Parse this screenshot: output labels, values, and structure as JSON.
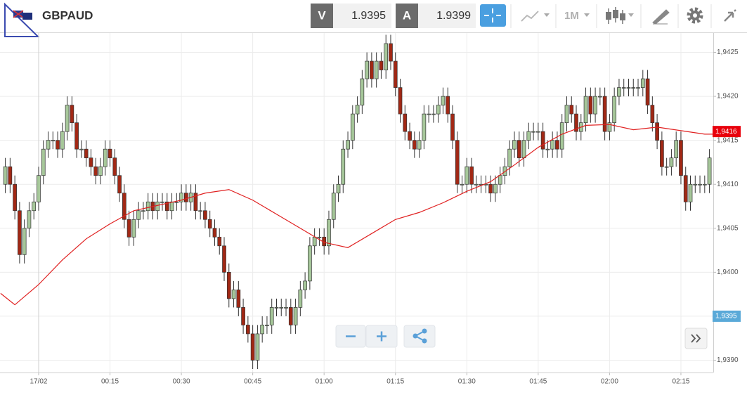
{
  "toolbar": {
    "symbol": "GBPAUD",
    "bid_label": "V",
    "bid": "1.9395",
    "ask_label": "A",
    "ask": "1.9399",
    "timeframe": "1M"
  },
  "chart_data": {
    "type": "candlestick",
    "up_color": "#a6c79a",
    "down_color": "#a12815",
    "grid": true,
    "xlim": [
      -8.12,
      141.8
    ],
    "xticks": [
      {
        "value": 0,
        "label": "17/02"
      },
      {
        "value": 15,
        "label": "00:15"
      },
      {
        "value": 30,
        "label": "00:30"
      },
      {
        "value": 45,
        "label": "00:45"
      },
      {
        "value": 60,
        "label": "01:00"
      },
      {
        "value": 75,
        "label": "01:15"
      },
      {
        "value": 90,
        "label": "01:30"
      },
      {
        "value": 105,
        "label": "01:45"
      },
      {
        "value": 120,
        "label": "02:00"
      },
      {
        "value": 135,
        "label": "02:15"
      }
    ],
    "ylim": [
      1.93886,
      1.94272
    ],
    "yticks": [
      {
        "value": 1.939,
        "label": "1,9390"
      },
      {
        "value": 1.9395,
        "label": "1,9395"
      },
      {
        "value": 1.94,
        "label": "1,9400"
      },
      {
        "value": 1.9405,
        "label": "1,9405"
      },
      {
        "value": 1.941,
        "label": "1,9410"
      },
      {
        "value": 1.9415,
        "label": "1,9415"
      },
      {
        "value": 1.942,
        "label": "1,9420"
      },
      {
        "value": 1.9425,
        "label": "1,9425"
      }
    ],
    "x": [
      -7,
      -6,
      -5,
      -4,
      -3,
      -2,
      -1,
      0,
      1,
      2,
      3,
      4,
      5,
      6,
      7,
      8,
      9,
      10,
      11,
      12,
      13,
      14,
      15,
      16,
      17,
      18,
      19,
      20,
      21,
      22,
      23,
      24,
      25,
      26,
      27,
      28,
      29,
      30,
      31,
      32,
      33,
      34,
      35,
      36,
      37,
      38,
      39,
      40,
      41,
      42,
      43,
      44,
      45,
      46,
      47,
      48,
      49,
      50,
      51,
      52,
      53,
      54,
      55,
      56,
      57,
      58,
      59,
      60,
      61,
      62,
      63,
      64,
      65,
      66,
      67,
      68,
      69,
      70,
      71,
      72,
      73,
      74,
      75,
      76,
      77,
      78,
      79,
      80,
      81,
      82,
      83,
      84,
      85,
      86,
      87,
      88,
      89,
      90,
      91,
      92,
      93,
      94,
      95,
      96,
      97,
      98,
      99,
      100,
      101,
      102,
      103,
      104,
      105,
      106,
      107,
      108,
      109,
      110,
      111,
      112,
      113,
      114,
      115,
      116,
      117,
      118,
      119,
      120,
      121,
      122,
      123,
      124,
      125,
      126,
      127,
      128,
      129,
      130,
      131,
      132,
      133,
      134,
      135,
      136,
      137,
      138,
      139,
      140,
      141
    ],
    "open": [
      1.941,
      1.9412,
      1.941,
      1.9407,
      1.9402,
      1.9405,
      1.9407,
      1.9408,
      1.9411,
      1.9414,
      1.9415,
      1.9415,
      1.9414,
      1.9416,
      1.9419,
      1.9417,
      1.9414,
      1.9414,
      1.9413,
      1.9412,
      1.9411,
      1.9412,
      1.9414,
      1.9413,
      1.9411,
      1.9409,
      1.9406,
      1.9404,
      1.9406,
      1.9407,
      1.9407,
      1.9408,
      1.9407,
      1.9408,
      1.9408,
      1.9407,
      1.9408,
      1.9408,
      1.9409,
      1.9408,
      1.9409,
      1.9407,
      1.9407,
      1.9406,
      1.9405,
      1.9404,
      1.9403,
      1.94,
      1.9397,
      1.9398,
      1.9396,
      1.9394,
      1.9393,
      1.939,
      1.9393,
      1.9394,
      1.9394,
      1.9396,
      1.9396,
      1.9396,
      1.9396,
      1.9394,
      1.9396,
      1.9398,
      1.9399,
      1.9403,
      1.9404,
      1.9404,
      1.9403,
      1.9406,
      1.9409,
      1.941,
      1.9414,
      1.9415,
      1.9418,
      1.9419,
      1.9422,
      1.9424,
      1.9422,
      1.9424,
      1.9423,
      1.9426,
      1.9424,
      1.9421,
      1.9418,
      1.9416,
      1.9415,
      1.9414,
      1.9415,
      1.9418,
      1.9418,
      1.9418,
      1.9419,
      1.942,
      1.9418,
      1.9415,
      1.941,
      1.941,
      1.9412,
      1.941,
      1.941,
      1.941,
      1.941,
      1.9409,
      1.941,
      1.9411,
      1.9412,
      1.9414,
      1.9415,
      1.9413,
      1.9415,
      1.9416,
      1.9416,
      1.9416,
      1.9414,
      1.9414,
      1.9415,
      1.9414,
      1.9417,
      1.9419,
      1.9418,
      1.9416,
      1.9417,
      1.942,
      1.9418,
      1.942,
      1.942,
      1.9416,
      1.9417,
      1.942,
      1.9421,
      1.9421,
      1.9421,
      1.9421,
      1.9421,
      1.9422,
      1.9419,
      1.9417,
      1.9415,
      1.9412,
      1.9412,
      1.9413,
      1.9415,
      1.9411,
      1.9408,
      1.941,
      1.941,
      1.941,
      1.941
    ],
    "high": [
      1.9413,
      1.9413,
      1.9411,
      1.9408,
      1.9406,
      1.9408,
      1.9409,
      1.9412,
      1.9415,
      1.9416,
      1.9416,
      1.9416,
      1.9417,
      1.942,
      1.942,
      1.9418,
      1.9415,
      1.9415,
      1.9414,
      1.9413,
      1.9413,
      1.9415,
      1.9415,
      1.9414,
      1.9412,
      1.941,
      1.9407,
      1.9407,
      1.9408,
      1.9408,
      1.9409,
      1.9409,
      1.9409,
      1.9409,
      1.9409,
      1.9409,
      1.9409,
      1.941,
      1.941,
      1.941,
      1.941,
      1.9408,
      1.9408,
      1.9407,
      1.9406,
      1.9405,
      1.9404,
      1.9401,
      1.9399,
      1.9399,
      1.9397,
      1.9395,
      1.9394,
      1.9394,
      1.9395,
      1.9395,
      1.9397,
      1.9397,
      1.9397,
      1.9397,
      1.9397,
      1.9397,
      1.9399,
      1.94,
      1.9404,
      1.9405,
      1.9405,
      1.9405,
      1.9407,
      1.941,
      1.9411,
      1.9415,
      1.9416,
      1.9419,
      1.942,
      1.9423,
      1.9425,
      1.9425,
      1.9425,
      1.9425,
      1.9427,
      1.9427,
      1.9425,
      1.9422,
      1.9419,
      1.9417,
      1.9416,
      1.9416,
      1.9419,
      1.9419,
      1.9419,
      1.942,
      1.9421,
      1.9421,
      1.9419,
      1.9416,
      1.9411,
      1.9413,
      1.9413,
      1.9411,
      1.9411,
      1.9411,
      1.9411,
      1.9411,
      1.9412,
      1.9413,
      1.9415,
      1.9416,
      1.9416,
      1.9416,
      1.9417,
      1.9417,
      1.9417,
      1.9417,
      1.9415,
      1.9416,
      1.9416,
      1.9418,
      1.942,
      1.942,
      1.9419,
      1.9418,
      1.9421,
      1.9421,
      1.9421,
      1.9421,
      1.9421,
      1.9418,
      1.9421,
      1.9422,
      1.9422,
      1.9422,
      1.9422,
      1.9422,
      1.9423,
      1.9423,
      1.942,
      1.9418,
      1.9416,
      1.9413,
      1.9414,
      1.9416,
      1.9416,
      1.9412,
      1.9411,
      1.9411,
      1.9411,
      1.9411,
      1.9414
    ],
    "low": [
      1.9409,
      1.9409,
      1.9406,
      1.9401,
      1.9401,
      1.9404,
      1.9406,
      1.9407,
      1.941,
      1.9413,
      1.9414,
      1.9413,
      1.9413,
      1.9415,
      1.9416,
      1.9413,
      1.9413,
      1.9412,
      1.9411,
      1.941,
      1.941,
      1.9411,
      1.9412,
      1.941,
      1.9408,
      1.9405,
      1.9403,
      1.9403,
      1.9405,
      1.9406,
      1.9406,
      1.9406,
      1.9406,
      1.9407,
      1.9406,
      1.9406,
      1.9407,
      1.9407,
      1.9407,
      1.9407,
      1.9406,
      1.9406,
      1.9405,
      1.9404,
      1.9403,
      1.9402,
      1.9399,
      1.9396,
      1.9396,
      1.9395,
      1.9393,
      1.9392,
      1.9389,
      1.9389,
      1.9392,
      1.9393,
      1.9393,
      1.9395,
      1.9395,
      1.9395,
      1.9393,
      1.9393,
      1.9395,
      1.9397,
      1.9398,
      1.9402,
      1.9403,
      1.9402,
      1.9402,
      1.9405,
      1.9408,
      1.9409,
      1.9413,
      1.9414,
      1.9417,
      1.9418,
      1.9421,
      1.9421,
      1.9421,
      1.9422,
      1.9422,
      1.9423,
      1.942,
      1.9417,
      1.9415,
      1.9414,
      1.9413,
      1.9413,
      1.9414,
      1.9417,
      1.9417,
      1.9417,
      1.9418,
      1.9417,
      1.9414,
      1.9409,
      1.9409,
      1.9409,
      1.9409,
      1.9409,
      1.9409,
      1.9409,
      1.9408,
      1.9408,
      1.9409,
      1.941,
      1.9411,
      1.9413,
      1.9412,
      1.9412,
      1.9414,
      1.9415,
      1.9415,
      1.9413,
      1.9413,
      1.9413,
      1.9413,
      1.9413,
      1.9416,
      1.9417,
      1.9415,
      1.9415,
      1.9416,
      1.9417,
      1.9417,
      1.9419,
      1.9415,
      1.9415,
      1.9416,
      1.9419,
      1.942,
      1.942,
      1.942,
      1.942,
      1.942,
      1.9418,
      1.9416,
      1.9414,
      1.9411,
      1.9411,
      1.9411,
      1.9412,
      1.941,
      1.9407,
      1.9407,
      1.9409,
      1.9409,
      1.9409,
      1.9409
    ],
    "close": [
      1.9412,
      1.941,
      1.9407,
      1.9402,
      1.9405,
      1.9407,
      1.9408,
      1.9411,
      1.9414,
      1.9415,
      1.9415,
      1.9414,
      1.9416,
      1.9419,
      1.9417,
      1.9414,
      1.9414,
      1.9413,
      1.9412,
      1.9411,
      1.9412,
      1.9414,
      1.9413,
      1.9411,
      1.9409,
      1.9406,
      1.9404,
      1.9406,
      1.9407,
      1.9407,
      1.9408,
      1.9407,
      1.9408,
      1.9408,
      1.9407,
      1.9408,
      1.9408,
      1.9409,
      1.9408,
      1.9409,
      1.9407,
      1.9407,
      1.9406,
      1.9405,
      1.9404,
      1.9403,
      1.94,
      1.9397,
      1.9398,
      1.9396,
      1.9394,
      1.9393,
      1.939,
      1.9393,
      1.9394,
      1.9394,
      1.9396,
      1.9396,
      1.9396,
      1.9396,
      1.9394,
      1.9396,
      1.9398,
      1.9399,
      1.9403,
      1.9404,
      1.9404,
      1.9403,
      1.9406,
      1.9409,
      1.941,
      1.9414,
      1.9415,
      1.9418,
      1.9419,
      1.9422,
      1.9424,
      1.9422,
      1.9424,
      1.9423,
      1.9426,
      1.9424,
      1.9421,
      1.9418,
      1.9416,
      1.9415,
      1.9414,
      1.9415,
      1.9418,
      1.9418,
      1.9418,
      1.9419,
      1.942,
      1.9418,
      1.9415,
      1.941,
      1.941,
      1.9412,
      1.941,
      1.941,
      1.941,
      1.941,
      1.9409,
      1.941,
      1.9411,
      1.9412,
      1.9414,
      1.9415,
      1.9413,
      1.9415,
      1.9416,
      1.9416,
      1.9416,
      1.9414,
      1.9414,
      1.9415,
      1.9414,
      1.9417,
      1.9419,
      1.9418,
      1.9416,
      1.9417,
      1.942,
      1.9418,
      1.942,
      1.942,
      1.9416,
      1.9417,
      1.942,
      1.9421,
      1.9421,
      1.9421,
      1.9421,
      1.9421,
      1.9422,
      1.9419,
      1.9417,
      1.9415,
      1.9412,
      1.9412,
      1.9413,
      1.9415,
      1.9411,
      1.9408,
      1.941,
      1.941,
      1.941,
      1.941,
      1.9413
    ],
    "moving_average": {
      "type": "line",
      "color": "#e02020",
      "x": [
        -8,
        -5,
        0,
        5,
        10,
        15,
        20,
        25,
        30,
        35,
        40,
        45,
        50,
        55,
        60,
        65,
        70,
        75,
        80,
        85,
        90,
        95,
        100,
        105,
        110,
        115,
        120,
        125,
        130,
        135,
        140,
        142
      ],
      "values": [
        1.93976,
        1.93963,
        1.93986,
        1.94014,
        1.94038,
        1.94055,
        1.9407,
        1.94076,
        1.94082,
        1.9409,
        1.94094,
        1.94082,
        1.94066,
        1.9405,
        1.94034,
        1.94028,
        1.94044,
        1.9406,
        1.94068,
        1.94079,
        1.94092,
        1.94103,
        1.94122,
        1.94142,
        1.94157,
        1.94167,
        1.94168,
        1.94162,
        1.94165,
        1.94161,
        1.94157,
        1.94157
      ]
    },
    "markers": [
      {
        "value": 1.9416,
        "label": "1,9416",
        "color": "#e8000b"
      },
      {
        "value": 1.9395,
        "label": "1,9395",
        "color": "#5aa9d8"
      }
    ]
  }
}
